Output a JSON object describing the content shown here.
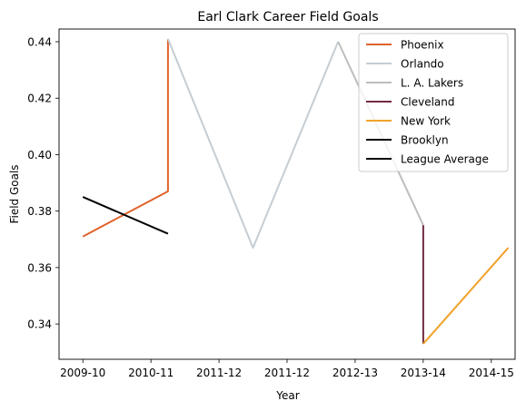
{
  "chart_data": {
    "type": "line",
    "title": "Earl Clark Career Field Goals",
    "xlabel": "Year",
    "ylabel": "Field Goals",
    "x_ticks": [
      {
        "x": 0,
        "label": "2009-10"
      },
      {
        "x": 1,
        "label": "2010-11"
      },
      {
        "x": 2,
        "label": "2011-12"
      },
      {
        "x": 3,
        "label": "2011-12"
      },
      {
        "x": 4,
        "label": "2012-13"
      },
      {
        "x": 5,
        "label": "2013-14"
      },
      {
        "x": 6,
        "label": "2014-15"
      }
    ],
    "y_ticks": [
      0.34,
      0.36,
      0.38,
      0.4,
      0.42,
      0.44
    ],
    "xlim": [
      -0.35,
      6.35
    ],
    "ylim": [
      0.3275,
      0.4445
    ],
    "grid": false,
    "legend_position": "top-right",
    "series": [
      {
        "name": "Phoenix",
        "color": "#e0632c",
        "points": [
          [
            0,
            0.371
          ],
          [
            1.25,
            0.387
          ],
          [
            1.25,
            0.441
          ]
        ]
      },
      {
        "name": "Orlando",
        "color": "#c5cdd3",
        "points": [
          [
            1.25,
            0.441
          ],
          [
            2.5,
            0.367
          ],
          [
            3.75,
            0.44
          ]
        ]
      },
      {
        "name": "L. A. Lakers",
        "color": "#bdbdbd",
        "points": [
          [
            3.75,
            0.44
          ],
          [
            5.0,
            0.375
          ]
        ]
      },
      {
        "name": "Cleveland",
        "color": "#722b3f",
        "points": [
          [
            5.0,
            0.375
          ],
          [
            5.0,
            0.333
          ]
        ]
      },
      {
        "name": "New York",
        "color": "#f0a32c",
        "points": [
          [
            5.0,
            0.333
          ],
          [
            6.25,
            0.367
          ]
        ]
      },
      {
        "name": "Brooklyn",
        "color": "#000000",
        "points": []
      },
      {
        "name": "League Average",
        "color": "#000000",
        "points": [
          [
            0,
            0.385
          ],
          [
            1.25,
            0.372
          ]
        ]
      }
    ]
  }
}
